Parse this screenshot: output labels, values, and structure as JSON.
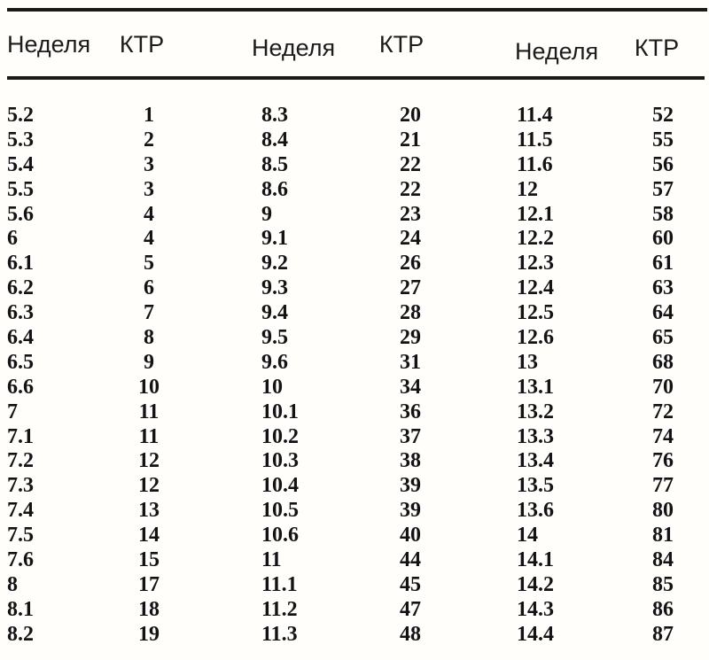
{
  "table": {
    "columns": [
      "Неделя",
      "КТР",
      "Неделя",
      "КТР",
      "Неделя",
      "КТР"
    ],
    "rows": [
      [
        "5.2",
        "1",
        "8.3",
        "20",
        "11.4",
        "52"
      ],
      [
        "5.3",
        "2",
        "8.4",
        "21",
        "11.5",
        "55"
      ],
      [
        "5.4",
        "3",
        "8.5",
        "22",
        "11.6",
        "56"
      ],
      [
        "5.5",
        "3",
        "8.6",
        "22",
        "12",
        "57"
      ],
      [
        "5.6",
        "4",
        "9",
        "23",
        "12.1",
        "58"
      ],
      [
        "6",
        "4",
        "9.1",
        "24",
        "12.2",
        "60"
      ],
      [
        "6.1",
        "5",
        "9.2",
        "26",
        "12.3",
        "61"
      ],
      [
        "6.2",
        "6",
        "9.3",
        "27",
        "12.4",
        "63"
      ],
      [
        "6.3",
        "7",
        "9.4",
        "28",
        "12.5",
        "64"
      ],
      [
        "6.4",
        "8",
        "9.5",
        "29",
        "12.6",
        "65"
      ],
      [
        "6.5",
        "9",
        "9.6",
        "31",
        "13",
        "68"
      ],
      [
        "6.6",
        "10",
        "10",
        "34",
        "13.1",
        "70"
      ],
      [
        "7",
        "11",
        "10.1",
        "36",
        "13.2",
        "72"
      ],
      [
        "7.1",
        "11",
        "10.2",
        "37",
        "13.3",
        "74"
      ],
      [
        "7.2",
        "12",
        "10.3",
        "38",
        "13.4",
        "76"
      ],
      [
        "7.3",
        "12",
        "10.4",
        "39",
        "13.5",
        "77"
      ],
      [
        "7.4",
        "13",
        "10.5",
        "39",
        "13.6",
        "80"
      ],
      [
        "7.5",
        "14",
        "10.6",
        "40",
        "14",
        "81"
      ],
      [
        "7.6",
        "15",
        "11",
        "44",
        "14.1",
        "84"
      ],
      [
        "8",
        "17",
        "11.1",
        "45",
        "14.2",
        "85"
      ],
      [
        "8.1",
        "18",
        "11.2",
        "47",
        "14.3",
        "86"
      ],
      [
        "8.2",
        "19",
        "11.3",
        "48",
        "14.4",
        "87"
      ]
    ]
  }
}
